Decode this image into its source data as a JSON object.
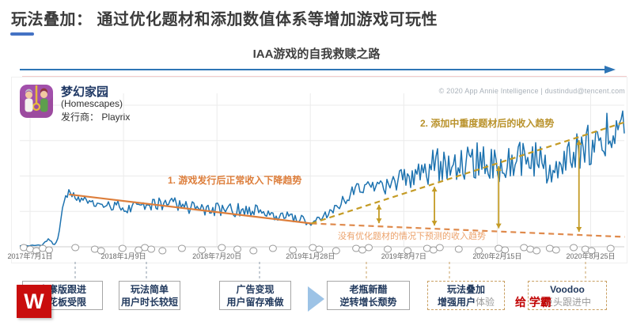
{
  "slide": {
    "title": "玩法叠加： 通过优化题材和添加数值体系等增加游戏可玩性",
    "subtitle": "IAA游戏的自我救赎之路"
  },
  "app_card": {
    "name": "梦幻家园",
    "name_en": "(Homescapes)",
    "publisher_label": "发行商： Playrix",
    "icon": "homescapes-app-icon"
  },
  "copyright": "© 2020 App Annie Intelligence | dustindud@tencent.com",
  "chart_data": {
    "type": "line",
    "x_axis": {
      "tick_labels": [
        "2017年7月1日",
        "2018年1月9日",
        "2018年7月20日",
        "2019年1月28日",
        "2019年8月7日",
        "2020年2月15日",
        "2020年8月25日"
      ],
      "tick_days": [
        0,
        192,
        384,
        576,
        768,
        960,
        1152
      ]
    },
    "y_axis": {
      "ylim": [
        0,
        100
      ],
      "gridline_values": [
        25,
        50,
        75,
        100
      ],
      "tick_labels_visible": false
    },
    "series": [
      {
        "name": "daily-revenue-index",
        "color": "#1E73B0",
        "anchors": [
          [
            -21,
            0.8,
            0.3
          ],
          [
            25,
            1,
            0.5
          ],
          [
            38,
            5,
            1.5
          ],
          [
            47,
            2,
            0.8
          ],
          [
            55,
            3,
            1
          ],
          [
            60,
            10,
            2
          ],
          [
            66,
            25,
            2
          ],
          [
            72,
            36,
            2
          ],
          [
            80,
            38,
            2.5
          ],
          [
            100,
            34,
            3
          ],
          [
            150,
            30,
            3.5
          ],
          [
            200,
            28,
            4
          ],
          [
            250,
            29.5,
            4.5
          ],
          [
            290,
            31,
            5
          ],
          [
            330,
            28,
            5
          ],
          [
            380,
            27.5,
            6
          ],
          [
            420,
            26,
            5
          ],
          [
            460,
            25,
            5
          ],
          [
            510,
            22.5,
            4
          ],
          [
            545,
            20,
            3.5
          ],
          [
            575,
            17.5,
            3
          ],
          [
            600,
            20,
            3
          ],
          [
            630,
            27,
            4
          ],
          [
            665,
            40,
            4.5
          ],
          [
            700,
            44,
            5
          ],
          [
            735,
            43,
            6
          ],
          [
            765,
            49,
            9
          ],
          [
            800,
            55,
            12
          ],
          [
            840,
            58,
            13
          ],
          [
            880,
            60,
            13
          ],
          [
            920,
            61,
            13
          ],
          [
            960,
            59,
            14
          ],
          [
            1000,
            62,
            14
          ],
          [
            1035,
            64,
            14
          ],
          [
            1065,
            56,
            12
          ],
          [
            1095,
            66,
            15
          ],
          [
            1125,
            70,
            16
          ],
          [
            1155,
            74,
            18
          ],
          [
            1185,
            79,
            19
          ],
          [
            1208,
            84,
            16
          ],
          [
            1222,
            87,
            10
          ]
        ]
      }
    ],
    "trend_lines": [
      {
        "name": "launch-decline",
        "style": "solid",
        "color": "#DD7E3B",
        "points": [
          [
            80,
            37
          ],
          [
            578,
            16.5
          ]
        ]
      },
      {
        "name": "predicted-without-optimization",
        "style": "dashed",
        "color": "#DF8A4C",
        "points": [
          [
            578,
            16.5
          ],
          [
            1222,
            7
          ]
        ]
      },
      {
        "name": "growth-after-theme-update",
        "style": "dashed",
        "color": "#C49B25",
        "points": [
          [
            578,
            16.5
          ],
          [
            1222,
            88
          ]
        ]
      }
    ],
    "gap_arrow_days": [
      717,
      831,
      963,
      1128
    ],
    "gap_arrow_color": "#C49B25",
    "update_marker_days": [
      -13,
      0,
      13,
      26,
      39,
      93,
      133,
      146,
      190,
      223,
      236,
      249,
      272,
      312,
      353,
      394,
      426,
      459,
      499,
      540,
      581,
      594,
      629,
      670,
      683,
      696,
      735,
      776,
      816,
      829,
      842,
      881,
      922,
      963,
      976,
      1015,
      1028,
      1041,
      1068,
      1081,
      1117,
      1141,
      1154,
      1193
    ],
    "annotations": [
      {
        "text": "1. 游戏发行后正常收入下降趋势",
        "color": "#DD7E3B"
      },
      {
        "text": "2. 添加中重度题材后的收入趋势",
        "color": "#B9922B"
      },
      {
        "text": "没有优化题材的情况下预测的收入趋势",
        "color": "#ECA26B"
      }
    ],
    "grid_color": "#EBEBEB",
    "axis_color": "#CFCFCF"
  },
  "flow": {
    "boxes": [
      {
        "line1": "山寨版跟进",
        "line2": "天花板受限",
        "line2_faded": "",
        "border": "solid"
      },
      {
        "line1": "玩法简单",
        "line2": "用户时长较短",
        "line2_faded": "",
        "border": "solid"
      },
      {
        "line1": "广告变现",
        "line2": "用户留存难做",
        "line2_faded": "",
        "border": "solid"
      },
      {
        "line1": "老瓶新醋",
        "line2": "逆转增长颓势",
        "line2_faded": "",
        "border": "solid"
      },
      {
        "line1": "玩法叠加",
        "line2": "增强用户",
        "line2_faded": "体验",
        "border": "dashed"
      },
      {
        "line1": "Voodoo",
        "line2": "",
        "line2_faded": "巨头跟进中",
        "border": "dashed"
      }
    ]
  },
  "watermarks": {
    "logo_text": "W",
    "stamp_text": "给 学霸"
  }
}
